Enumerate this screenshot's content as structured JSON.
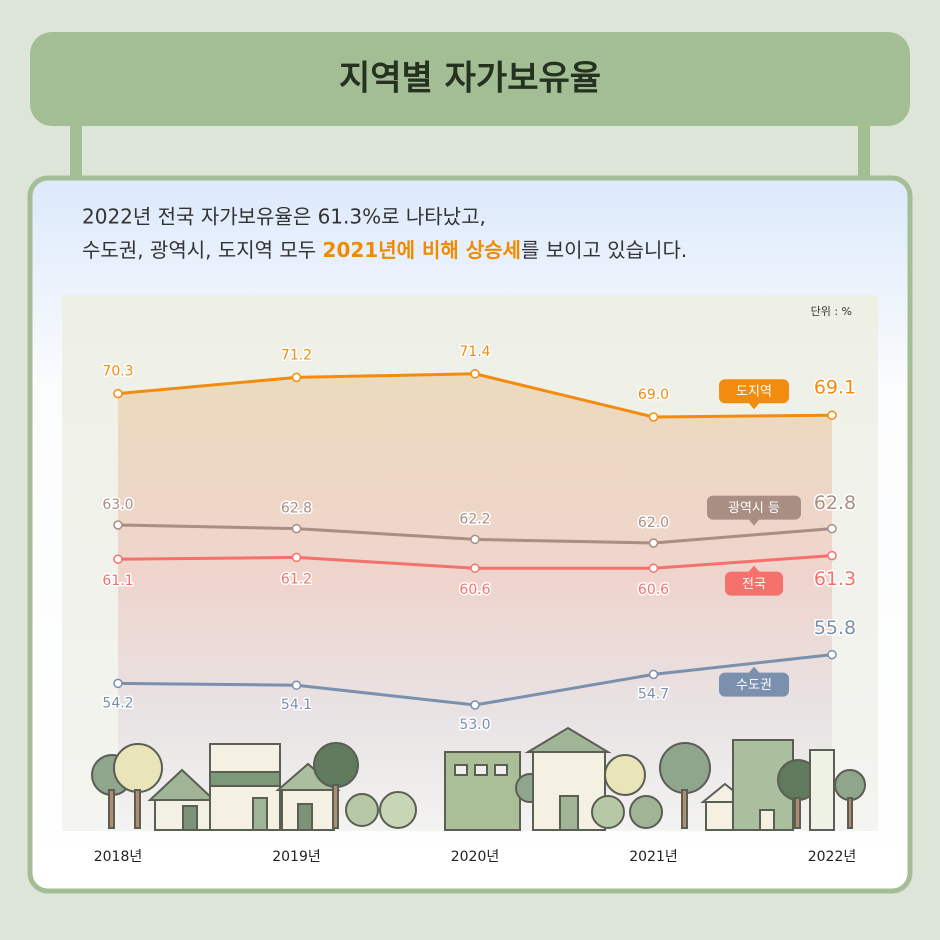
{
  "chart_data": {
    "type": "line",
    "title": "지역별 자가보유율",
    "subtitle_lines": [
      "2022년 전국 자가보유율은 61.3%로 나타났고,"
    ],
    "subtitle_parts": [
      "수도권, 광역시, 도지역 모두 ",
      "2021년에 비해 상승세",
      "를 보이고 있습니다."
    ],
    "unit": "단위 : %",
    "categories": [
      "2018년",
      "2019년",
      "2020년",
      "2021년",
      "2022년"
    ],
    "ylim": [
      52,
      72
    ],
    "series": [
      {
        "name": "도지역",
        "color": "#f28c0f",
        "values": [
          70.3,
          71.2,
          71.4,
          69.0,
          69.1
        ],
        "value_labels": [
          "70.3",
          "71.2",
          "71.4",
          "69.0",
          "69.1"
        ]
      },
      {
        "name": "광역시 등",
        "color": "#a98e83",
        "values": [
          63.0,
          62.8,
          62.2,
          62.0,
          62.8
        ],
        "value_labels": [
          "63.0",
          "62.8",
          "62.2",
          "62.0",
          "62.8"
        ]
      },
      {
        "name": "전국",
        "color": "#f5716b",
        "values": [
          61.1,
          61.2,
          60.6,
          60.6,
          61.3
        ],
        "value_labels": [
          "61.1",
          "61.2",
          "60.6",
          "60.6",
          "61.3"
        ]
      },
      {
        "name": "수도권",
        "color": "#7b8fae",
        "values": [
          54.2,
          54.1,
          53.0,
          54.7,
          55.8
        ],
        "value_labels": [
          "54.2",
          "54.1",
          "53.0",
          "54.7",
          "55.8"
        ]
      }
    ]
  }
}
